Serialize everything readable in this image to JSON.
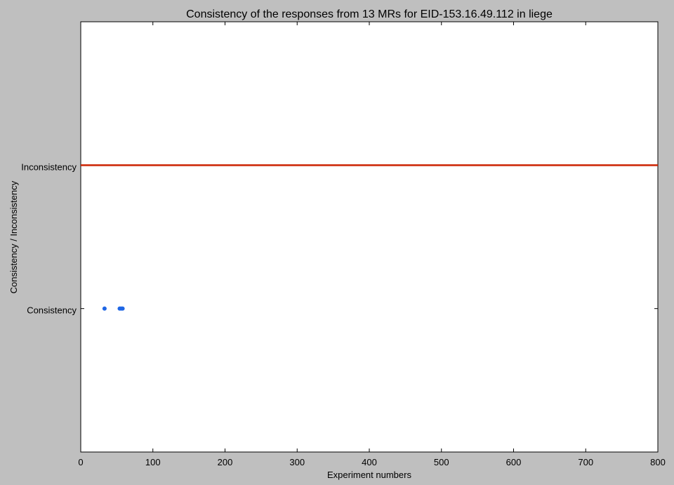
{
  "chart_data": {
    "type": "scatter",
    "title": "Consistency of the responses from 13 MRs for EID-153.16.49.112 in liege",
    "xlabel": "Experiment numbers",
    "ylabel": "Consistency / Inconsistency",
    "xlim": [
      0,
      800
    ],
    "ylim": [
      -1,
      2
    ],
    "xticks": [
      0,
      100,
      200,
      300,
      400,
      500,
      600,
      700,
      800
    ],
    "yticks": [
      {
        "value": 0,
        "label": "Consistency"
      },
      {
        "value": 1,
        "label": "Inconsistency"
      }
    ],
    "grid": false,
    "legend": "none",
    "series": [
      {
        "category": "Inconsistency",
        "y": 1,
        "x_range": [
          0,
          800
        ],
        "color": "#cc2200",
        "marker": "dense"
      },
      {
        "category": "Consistency",
        "y": 0,
        "x": [
          33,
          54,
          56,
          58
        ],
        "color": "#1f66e5",
        "marker": "dot"
      }
    ]
  }
}
